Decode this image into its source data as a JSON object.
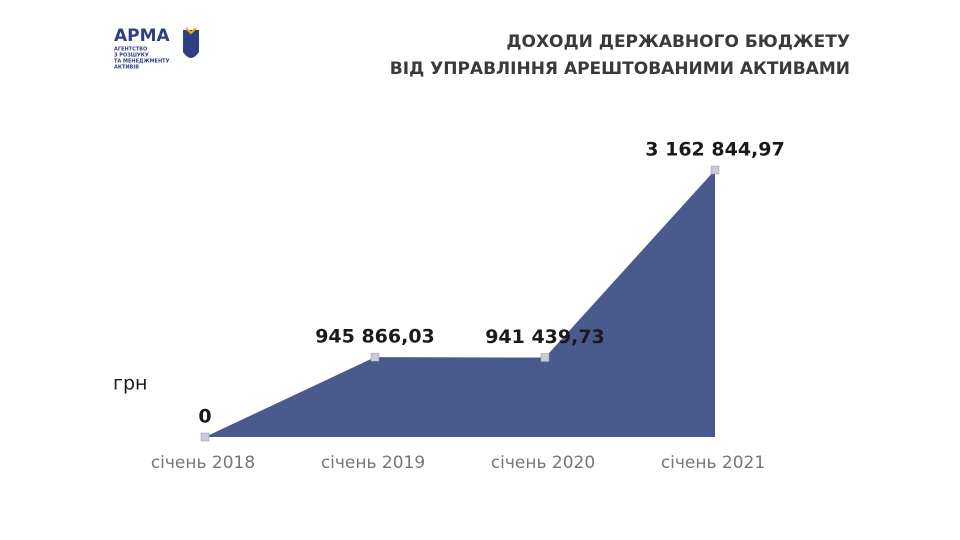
{
  "logo": {
    "name": "АРМА",
    "lines": [
      "АГЕНТСТВО",
      "З РОЗШУКУ",
      "ТА МЕНЕДЖМЕНТУ",
      "АКТИВІВ"
    ]
  },
  "chart_data": {
    "type": "area",
    "title": [
      "ДОХОДИ ДЕРЖАВНОГО БЮДЖЕТУ",
      "ВІД УПРАВЛІННЯ АРЕШТОВАНИМИ АКТИВАМИ"
    ],
    "y_label": "грн",
    "categories": [
      "січень 2018",
      "січень 2019",
      "січень 2020",
      "січень 2021"
    ],
    "values": [
      0,
      945866.03,
      941439.73,
      3162844.97
    ],
    "value_labels": [
      "0",
      "945 866,03",
      "941 439,73",
      "3 162 844,97"
    ],
    "color": "#4a5a8d",
    "marker_color": "#c9c9dd"
  }
}
